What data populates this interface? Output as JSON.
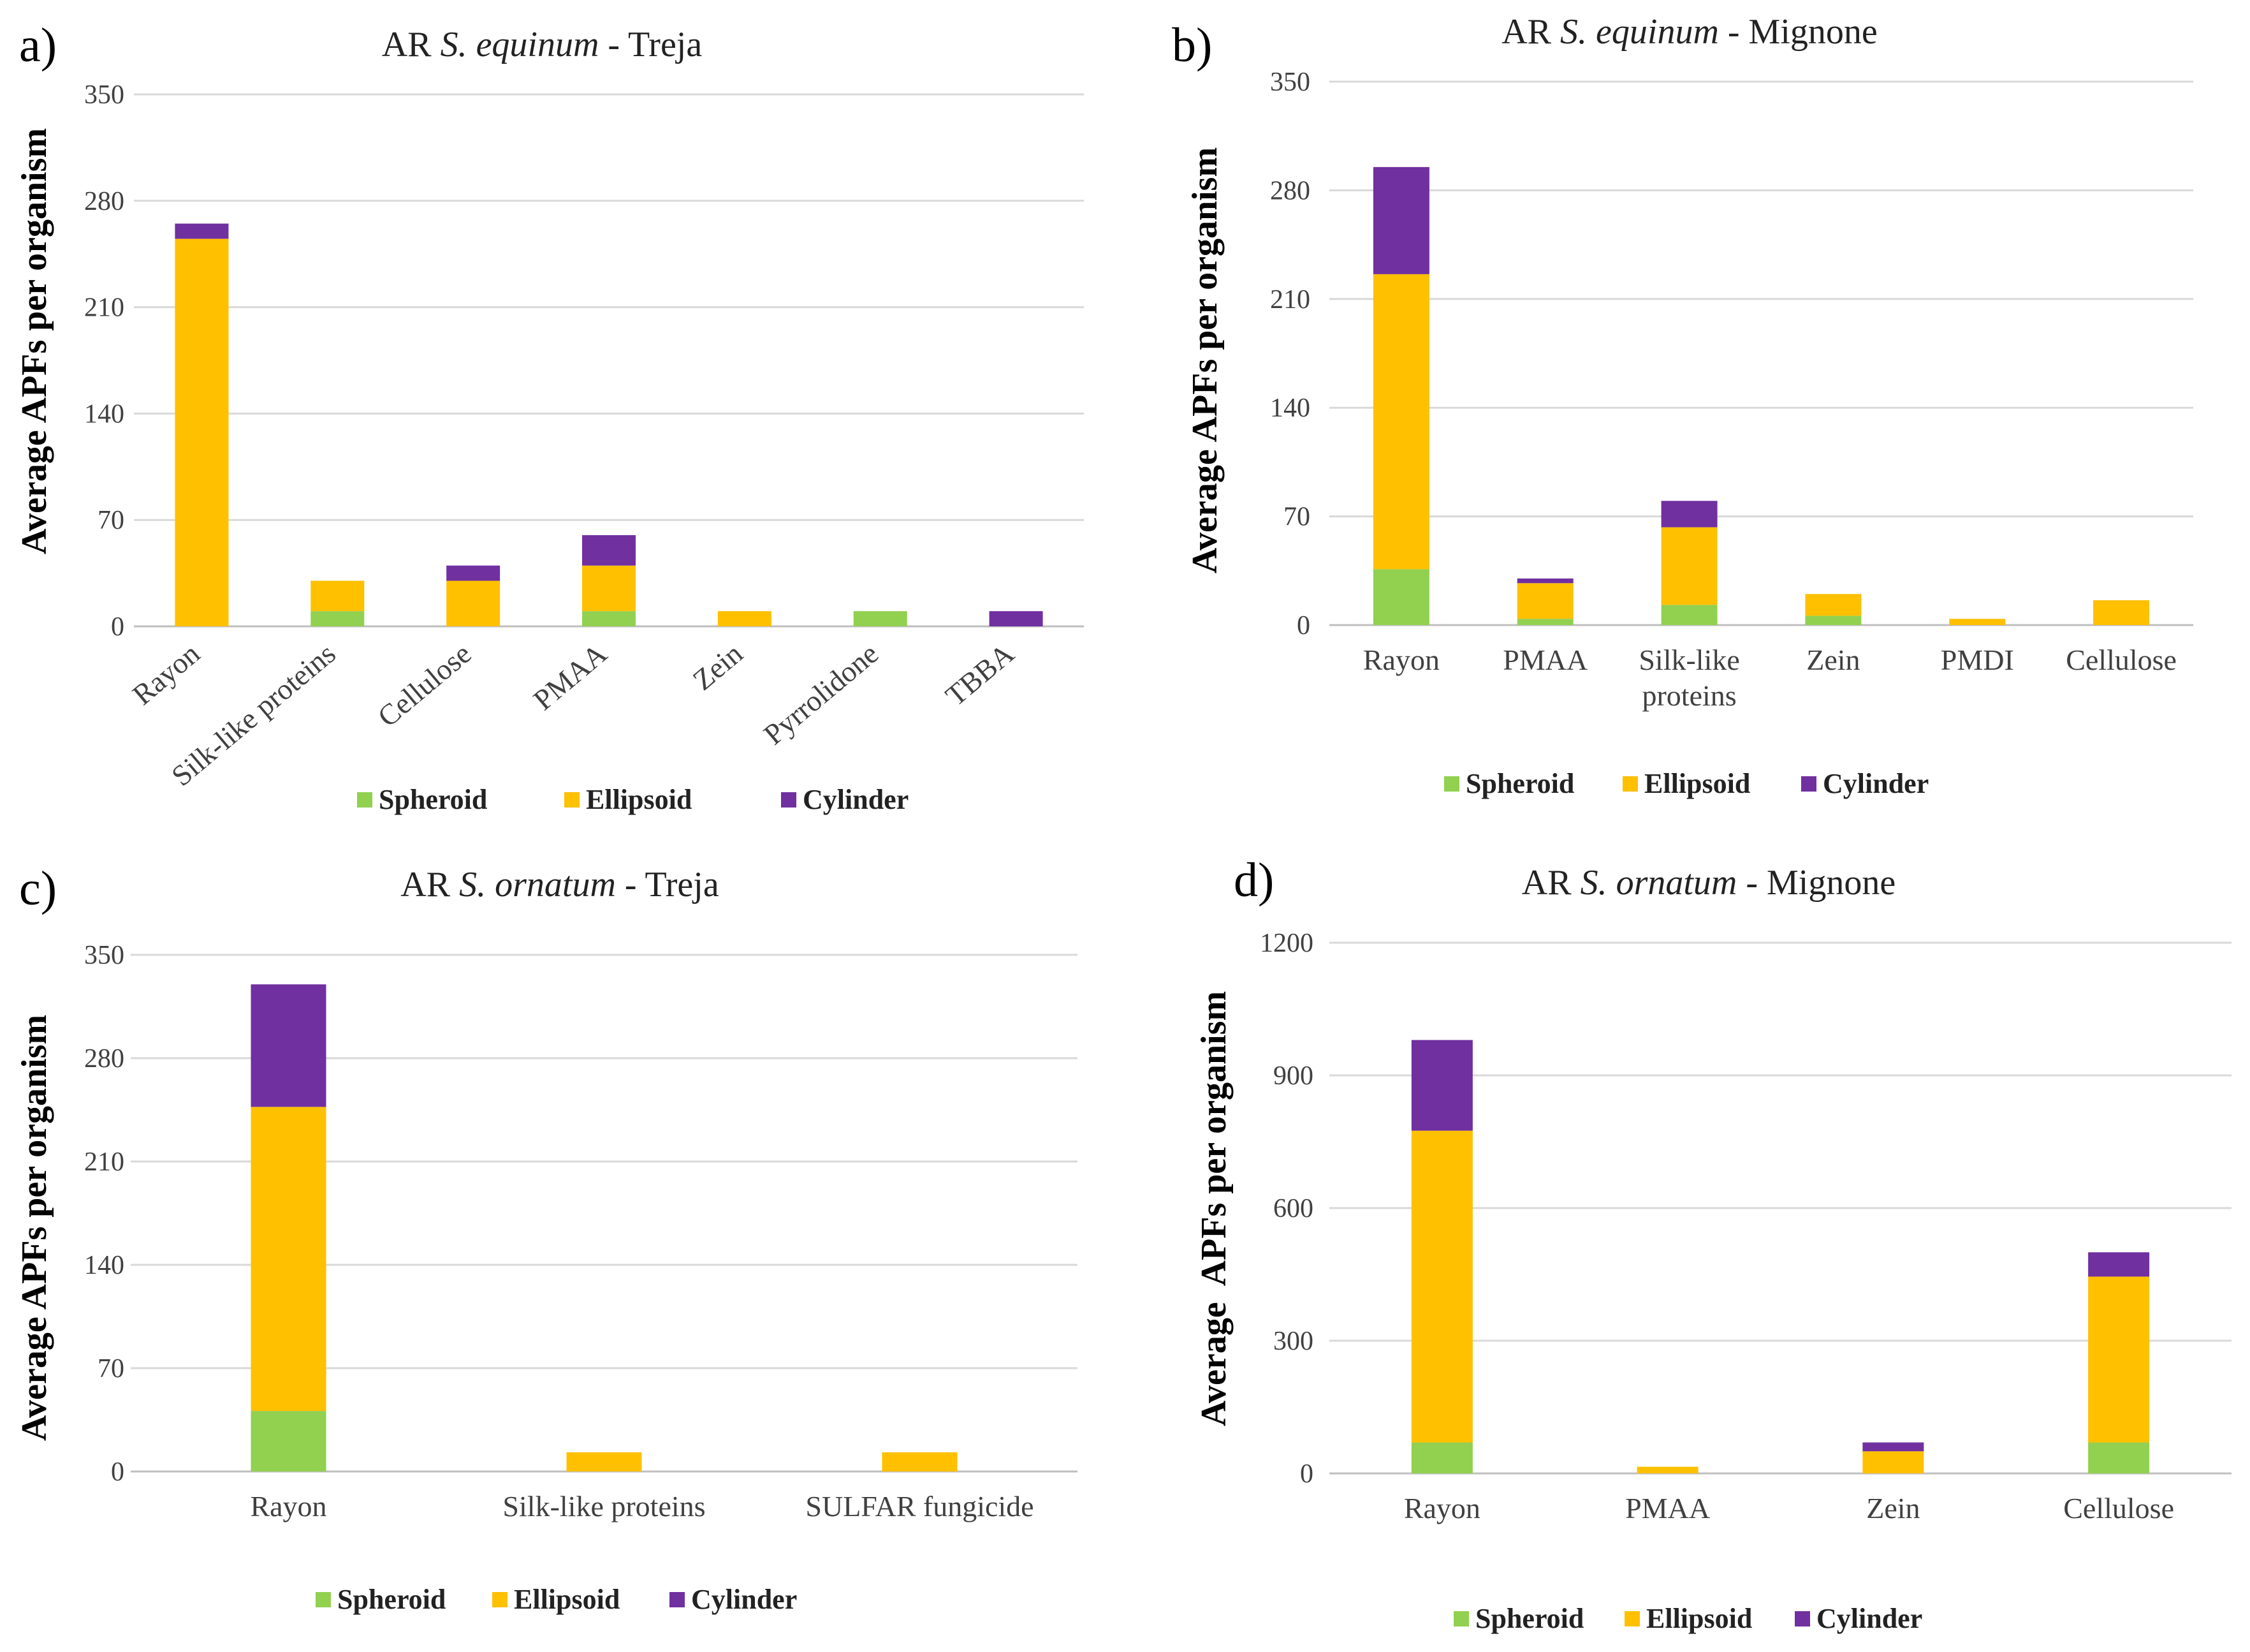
{
  "colors": {
    "Spheroid": "#92d050",
    "Ellipsoid": "#ffc000",
    "Cylinder": "#7030a0",
    "grid": "#d9d9d9",
    "axis": "#bfbfbf"
  },
  "chart_data": [
    {
      "type": "bar",
      "stacked": true,
      "panel_label": "a)",
      "title_parts": [
        "AR ",
        "S. equinum",
        " - Treja"
      ],
      "ylabel": "Average APFs per organism",
      "ylim": [
        0,
        350
      ],
      "yticks": [
        0,
        70,
        140,
        210,
        280,
        350
      ],
      "categories": [
        "Rayon",
        "Silk-like proteins",
        "Cellulose",
        "PMAA",
        "Zein",
        "Pyrrolidone",
        "TBBA"
      ],
      "series": [
        {
          "name": "Spheroid",
          "values": [
            0,
            10,
            0,
            10,
            0,
            10,
            0
          ]
        },
        {
          "name": "Ellipsoid",
          "values": [
            255,
            20,
            30,
            30,
            10,
            0,
            0
          ]
        },
        {
          "name": "Cylinder",
          "values": [
            10,
            0,
            10,
            20,
            0,
            0,
            10
          ]
        }
      ],
      "legend": [
        "Spheroid",
        "Ellipsoid",
        "Cylinder"
      ]
    },
    {
      "type": "bar",
      "stacked": true,
      "panel_label": "b)",
      "title_parts": [
        "AR ",
        "S. equinum",
        " - Mignone"
      ],
      "ylabel": "Average APFs per organism",
      "ylim": [
        0,
        350
      ],
      "yticks": [
        0,
        70,
        140,
        210,
        280,
        350
      ],
      "categories": [
        "Rayon",
        "PMAA",
        "Silk-like\nproteins",
        "Zein",
        "PMDI",
        "Cellulose"
      ],
      "series": [
        {
          "name": "Spheroid",
          "values": [
            36,
            4,
            13,
            6,
            0,
            0
          ]
        },
        {
          "name": "Ellipsoid",
          "values": [
            190,
            23,
            50,
            14,
            4,
            16
          ]
        },
        {
          "name": "Cylinder",
          "values": [
            69,
            3,
            17,
            0,
            0,
            0
          ]
        }
      ],
      "legend": [
        "Spheroid",
        "Ellipsoid",
        "Cylinder"
      ]
    },
    {
      "type": "bar",
      "stacked": true,
      "panel_label": "c)",
      "title_parts": [
        "AR ",
        "S. ornatum",
        " - Treja"
      ],
      "ylabel": "Average APFs per organism",
      "ylim": [
        0,
        350
      ],
      "yticks": [
        0,
        70,
        140,
        210,
        280,
        350
      ],
      "categories": [
        "Rayon",
        "Silk-like proteins",
        "SULFAR fungicide"
      ],
      "series": [
        {
          "name": "Spheroid",
          "values": [
            41,
            0,
            0
          ]
        },
        {
          "name": "Ellipsoid",
          "values": [
            206,
            13,
            13
          ]
        },
        {
          "name": "Cylinder",
          "values": [
            83,
            0,
            0
          ]
        }
      ],
      "legend": [
        "Spheroid",
        "Ellipsoid",
        "Cylinder"
      ]
    },
    {
      "type": "bar",
      "stacked": true,
      "panel_label": "d)",
      "title_parts": [
        "AR ",
        "S. ornatum",
        " - Mignone"
      ],
      "ylabel": "Average  APFs per organism",
      "ylim": [
        0,
        1200
      ],
      "yticks": [
        0,
        300,
        600,
        900,
        1200
      ],
      "categories": [
        "Rayon",
        "PMAA",
        "Zein",
        "Cellulose"
      ],
      "series": [
        {
          "name": "Spheroid",
          "values": [
            70,
            0,
            0,
            70
          ]
        },
        {
          "name": "Ellipsoid",
          "values": [
            705,
            15,
            50,
            375
          ]
        },
        {
          "name": "Cylinder",
          "values": [
            205,
            0,
            20,
            55
          ]
        }
      ],
      "legend": [
        "Spheroid",
        "Ellipsoid",
        "Cylinder"
      ]
    }
  ]
}
